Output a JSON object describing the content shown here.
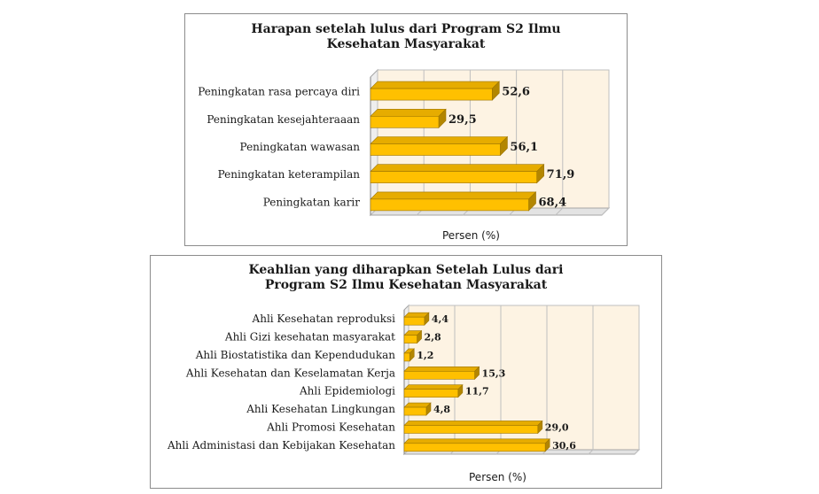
{
  "chart_data": [
    {
      "type": "bar",
      "orientation": "horizontal",
      "title": "Harapan setelah lulus dari Program S2 Ilmu Kesehatan Masyarakat",
      "title_lines": [
        "Harapan setelah lulus dari Program S2 Ilmu",
        "Kesehatan Masyarakat"
      ],
      "xlabel": "Persen (%)",
      "categories": [
        "Peningkatan rasa percaya diri",
        "Peningkatan kesejahteraaan",
        "Peningkatan wawasan",
        "Peningkatan keterampilan",
        "Peningkatan karir"
      ],
      "values": [
        52.6,
        29.5,
        56.1,
        71.9,
        68.4
      ],
      "value_labels": [
        "52,6",
        "29,5",
        "56,1",
        "71,9",
        "68,4"
      ],
      "xlim": [
        0,
        100
      ],
      "grid": true,
      "bar_color": "#FFC000",
      "plot_bg": "#FDF3E3"
    },
    {
      "type": "bar",
      "orientation": "horizontal",
      "title": "Keahlian yang diharapkan Setelah Lulus dari Program S2 Ilmu Kesehatan Masyarakat",
      "title_lines": [
        "Keahlian yang diharapkan Setelah Lulus dari",
        "Program S2 Ilmu Kesehatan Masyarakat"
      ],
      "xlabel": "Persen (%)",
      "categories": [
        "Ahli Kesehatan reproduksi",
        "Ahli Gizi kesehatan masyarakat",
        "Ahli Biostatistika dan Kependudukan",
        "Ahli Kesehatan dan Keselamatan Kerja",
        "Ahli Epidemiologi",
        "Ahli Kesehatan Lingkungan",
        "Ahli Promosi Kesehatan",
        "Ahli Administasi dan Kebijakan Kesehatan"
      ],
      "values": [
        4.4,
        2.8,
        1.2,
        15.3,
        11.7,
        4.8,
        29.0,
        30.6
      ],
      "value_labels": [
        "4,4",
        "2,8",
        "1,2",
        "15,3",
        "11,7",
        "4,8",
        "29,0",
        "30,6"
      ],
      "xlim": [
        0,
        50
      ],
      "grid": true,
      "bar_color": "#FFC000",
      "plot_bg": "#FDF3E3"
    }
  ]
}
